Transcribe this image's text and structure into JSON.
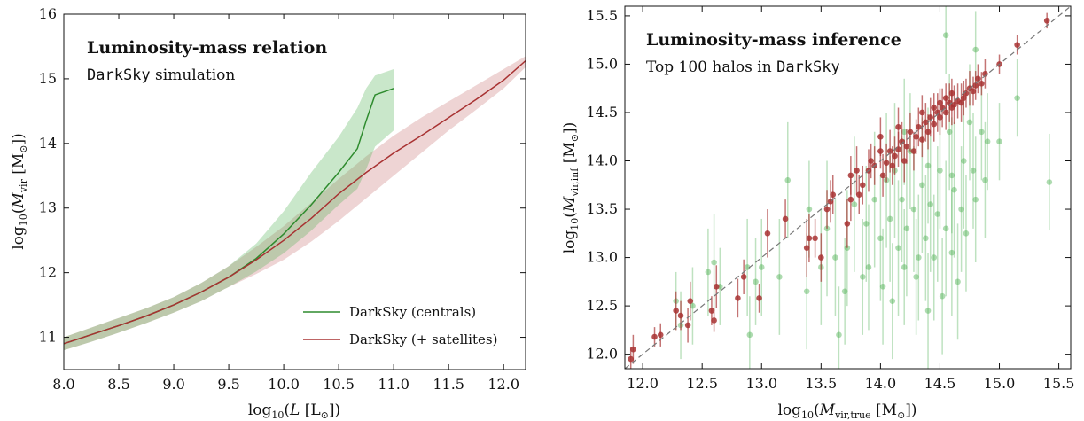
{
  "chart_data": [
    {
      "type": "line",
      "title": "Luminosity-mass relation",
      "subtitle_mono": "DarkSky",
      "subtitle_rest": " simulation",
      "xlabel": "log10(L [L⊙])",
      "ylabel": "log10(Mvir [M⊙])",
      "xlim": [
        8.0,
        12.2
      ],
      "ylim": [
        10.5,
        16.0
      ],
      "xticks": [
        "8.0",
        "8.5",
        "9.0",
        "9.5",
        "10.0",
        "10.5",
        "11.0",
        "11.5",
        "12.0"
      ],
      "yticks": [
        "11",
        "12",
        "13",
        "14",
        "15",
        "16"
      ],
      "legend_position": "bottom-right",
      "series": [
        {
          "name": "DarkSky (centrals)",
          "color": "#2e8b2e",
          "band_color": "#4caf50",
          "x": [
            8.0,
            8.25,
            8.5,
            8.75,
            9.0,
            9.25,
            9.5,
            9.75,
            10.0,
            10.25,
            10.5,
            10.67,
            10.75,
            10.83,
            11.0
          ],
          "y": [
            10.9,
            11.04,
            11.18,
            11.33,
            11.5,
            11.7,
            11.93,
            12.22,
            12.6,
            13.05,
            13.55,
            13.92,
            14.35,
            14.75,
            14.85
          ],
          "lower": [
            10.8,
            10.93,
            11.07,
            11.22,
            11.38,
            11.56,
            11.78,
            12.02,
            12.3,
            12.65,
            13.05,
            13.3,
            13.6,
            13.95,
            14.2
          ],
          "upper": [
            11.0,
            11.15,
            11.3,
            11.45,
            11.62,
            11.84,
            12.1,
            12.45,
            12.95,
            13.55,
            14.1,
            14.55,
            14.85,
            15.05,
            15.15
          ]
        },
        {
          "name": "DarkSky (+ satellites)",
          "color": "#a83232",
          "band_color": "#c87070",
          "x": [
            8.0,
            8.25,
            8.5,
            8.75,
            9.0,
            9.25,
            9.5,
            9.75,
            10.0,
            10.25,
            10.5,
            10.75,
            11.0,
            11.25,
            11.5,
            11.75,
            12.0,
            12.2
          ],
          "y": [
            10.9,
            11.04,
            11.18,
            11.33,
            11.5,
            11.7,
            11.93,
            12.2,
            12.5,
            12.84,
            13.22,
            13.55,
            13.85,
            14.12,
            14.4,
            14.68,
            14.98,
            15.28
          ],
          "lower": [
            10.8,
            10.93,
            11.07,
            11.22,
            11.38,
            11.56,
            11.78,
            11.98,
            12.2,
            12.48,
            12.8,
            13.15,
            13.5,
            13.85,
            14.2,
            14.52,
            14.85,
            15.18
          ],
          "upper": [
            11.0,
            11.15,
            11.3,
            11.45,
            11.62,
            11.84,
            12.1,
            12.4,
            12.72,
            13.08,
            13.45,
            13.8,
            14.12,
            14.4,
            14.65,
            14.9,
            15.15,
            15.35
          ]
        }
      ]
    },
    {
      "type": "scatter",
      "title": "Luminosity-mass inference",
      "subtitle_rest": "Top 100 halos in ",
      "subtitle_mono": "DarkSky",
      "xlabel": "log10(Mvir,true [M⊙])",
      "ylabel": "log10(Mvir,inf [M⊙])",
      "xlim": [
        11.85,
        15.6
      ],
      "ylim": [
        11.85,
        15.6
      ],
      "xticks": [
        "12.0",
        "12.5",
        "13.0",
        "13.5",
        "14.0",
        "14.5",
        "15.0",
        "15.5"
      ],
      "yticks": [
        "12.0",
        "12.5",
        "13.0",
        "13.5",
        "14.0",
        "14.5",
        "15.0",
        "15.5"
      ],
      "diagonal": true,
      "series": [
        {
          "name": "",
          "color": "#a83232",
          "points": [
            [
              11.9,
              11.95,
              0.12
            ],
            [
              11.92,
              12.05,
              0.15
            ],
            [
              12.1,
              12.18,
              0.1
            ],
            [
              12.15,
              12.2,
              0.12
            ],
            [
              12.28,
              12.45,
              0.2
            ],
            [
              12.32,
              12.4,
              0.15
            ],
            [
              12.38,
              12.3,
              0.18
            ],
            [
              12.4,
              12.55,
              0.2
            ],
            [
              12.58,
              12.45,
              0.15
            ],
            [
              12.6,
              12.35,
              0.12
            ],
            [
              12.62,
              12.7,
              0.22
            ],
            [
              12.8,
              12.58,
              0.2
            ],
            [
              12.85,
              12.8,
              0.18
            ],
            [
              12.98,
              12.58,
              0.15
            ],
            [
              13.05,
              13.25,
              0.25
            ],
            [
              13.2,
              13.4,
              0.2
            ],
            [
              13.38,
              13.1,
              0.3
            ],
            [
              13.4,
              13.2,
              0.25
            ],
            [
              13.45,
              13.2,
              0.2
            ],
            [
              13.5,
              13.0,
              0.25
            ],
            [
              13.55,
              13.5,
              0.2
            ],
            [
              13.58,
              13.58,
              0.22
            ],
            [
              13.6,
              13.65,
              0.2
            ],
            [
              13.72,
              13.35,
              0.25
            ],
            [
              13.75,
              13.6,
              0.22
            ],
            [
              13.75,
              13.85,
              0.2
            ],
            [
              13.8,
              13.9,
              0.25
            ],
            [
              13.82,
              13.65,
              0.2
            ],
            [
              13.85,
              13.75,
              0.2
            ],
            [
              13.9,
              13.9,
              0.22
            ],
            [
              13.92,
              14.0,
              0.18
            ],
            [
              13.95,
              13.95,
              0.2
            ],
            [
              14.0,
              14.1,
              0.18
            ],
            [
              14.02,
              13.85,
              0.22
            ],
            [
              14.05,
              13.98,
              0.2
            ],
            [
              14.08,
              14.1,
              0.22
            ],
            [
              14.1,
              13.95,
              0.2
            ],
            [
              14.12,
              14.05,
              0.2
            ],
            [
              14.15,
              14.12,
              0.18
            ],
            [
              14.18,
              14.2,
              0.2
            ],
            [
              14.2,
              14.0,
              0.22
            ],
            [
              14.22,
              14.15,
              0.18
            ],
            [
              14.25,
              14.3,
              0.2
            ],
            [
              14.28,
              14.1,
              0.2
            ],
            [
              14.3,
              14.25,
              0.18
            ],
            [
              14.32,
              14.35,
              0.2
            ],
            [
              14.35,
              14.22,
              0.18
            ],
            [
              14.38,
              14.4,
              0.2
            ],
            [
              14.4,
              14.3,
              0.18
            ],
            [
              14.42,
              14.45,
              0.2
            ],
            [
              14.45,
              14.38,
              0.18
            ],
            [
              14.48,
              14.5,
              0.2
            ],
            [
              14.5,
              14.45,
              0.18
            ],
            [
              14.52,
              14.55,
              0.2
            ],
            [
              14.55,
              14.5,
              0.18
            ],
            [
              14.58,
              14.6,
              0.2
            ],
            [
              14.6,
              14.55,
              0.18
            ],
            [
              14.62,
              14.58,
              0.2
            ],
            [
              14.65,
              14.62,
              0.18
            ],
            [
              14.68,
              14.6,
              0.2
            ],
            [
              14.7,
              14.65,
              0.18
            ],
            [
              14.72,
              14.7,
              0.15
            ],
            [
              14.75,
              14.75,
              0.18
            ],
            [
              14.78,
              14.72,
              0.15
            ],
            [
              14.8,
              14.78,
              0.15
            ],
            [
              14.82,
              14.85,
              0.15
            ],
            [
              14.85,
              14.8,
              0.12
            ],
            [
              14.88,
              14.9,
              0.15
            ],
            [
              14.5,
              14.6,
              0.15
            ],
            [
              14.35,
              14.5,
              0.18
            ],
            [
              14.15,
              14.35,
              0.2
            ],
            [
              14.0,
              14.25,
              0.2
            ],
            [
              14.6,
              14.7,
              0.15
            ],
            [
              14.55,
              14.65,
              0.15
            ],
            [
              14.45,
              14.55,
              0.15
            ],
            [
              15.0,
              15.0,
              0.1
            ],
            [
              15.15,
              15.2,
              0.1
            ],
            [
              15.4,
              15.45,
              0.08
            ]
          ]
        },
        {
          "name": "",
          "color": "#4caf50",
          "points": [
            [
              12.28,
              12.55,
              0.3
            ],
            [
              12.32,
              12.3,
              0.35
            ],
            [
              12.42,
              12.5,
              0.4
            ],
            [
              12.55,
              12.85,
              0.45
            ],
            [
              12.65,
              12.7,
              0.4
            ],
            [
              12.88,
              12.9,
              0.5
            ],
            [
              12.95,
              12.75,
              0.45
            ],
            [
              13.0,
              12.9,
              0.5
            ],
            [
              13.15,
              12.8,
              0.6
            ],
            [
              13.22,
              13.8,
              0.6
            ],
            [
              13.38,
              12.65,
              0.6
            ],
            [
              13.4,
              13.5,
              0.5
            ],
            [
              13.5,
              12.9,
              0.6
            ],
            [
              13.55,
              13.3,
              0.7
            ],
            [
              13.62,
              13.0,
              0.6
            ],
            [
              13.7,
              12.65,
              0.55
            ],
            [
              13.72,
              13.1,
              0.6
            ],
            [
              13.78,
              13.55,
              0.7
            ],
            [
              13.85,
              12.8,
              0.6
            ],
            [
              13.88,
              13.35,
              0.6
            ],
            [
              13.9,
              12.9,
              0.65
            ],
            [
              13.95,
              13.6,
              0.7
            ],
            [
              14.0,
              13.2,
              0.65
            ],
            [
              14.02,
              12.7,
              0.6
            ],
            [
              14.05,
              13.8,
              0.7
            ],
            [
              14.08,
              13.4,
              0.65
            ],
            [
              14.1,
              12.55,
              0.6
            ],
            [
              14.12,
              13.9,
              0.7
            ],
            [
              14.15,
              13.1,
              0.7
            ],
            [
              14.18,
              13.6,
              0.65
            ],
            [
              14.2,
              12.9,
              0.6
            ],
            [
              14.22,
              13.3,
              0.7
            ],
            [
              14.25,
              14.1,
              0.6
            ],
            [
              14.28,
              13.5,
              0.65
            ],
            [
              14.3,
              12.8,
              0.6
            ],
            [
              14.32,
              13.0,
              0.65
            ],
            [
              14.35,
              13.75,
              0.7
            ],
            [
              14.38,
              13.2,
              0.65
            ],
            [
              14.4,
              12.45,
              0.6
            ],
            [
              14.42,
              13.55,
              0.7
            ],
            [
              14.45,
              13.0,
              0.65
            ],
            [
              14.48,
              13.45,
              0.7
            ],
            [
              14.5,
              13.9,
              0.6
            ],
            [
              14.52,
              12.6,
              0.6
            ],
            [
              14.55,
              13.3,
              0.7
            ],
            [
              14.58,
              14.3,
              0.6
            ],
            [
              14.6,
              13.05,
              0.65
            ],
            [
              14.62,
              13.7,
              0.7
            ],
            [
              14.65,
              12.75,
              0.6
            ],
            [
              14.68,
              13.5,
              0.65
            ],
            [
              14.7,
              14.0,
              0.7
            ],
            [
              14.72,
              13.25,
              0.6
            ],
            [
              14.75,
              14.4,
              0.6
            ],
            [
              14.78,
              13.9,
              0.6
            ],
            [
              14.8,
              13.6,
              0.65
            ],
            [
              14.85,
              14.3,
              0.5
            ],
            [
              14.88,
              13.8,
              0.6
            ],
            [
              14.8,
              15.15,
              0.4
            ],
            [
              14.55,
              15.3,
              0.4
            ],
            [
              14.9,
              14.2,
              0.5
            ],
            [
              15.15,
              14.65,
              0.4
            ],
            [
              15.0,
              14.2,
              0.4
            ],
            [
              15.42,
              13.78,
              0.5
            ],
            [
              14.6,
              13.85,
              0.6
            ],
            [
              14.4,
              13.95,
              0.6
            ],
            [
              14.2,
              14.3,
              0.55
            ],
            [
              13.65,
              12.2,
              0.5
            ],
            [
              12.6,
              12.95,
              0.5
            ],
            [
              12.9,
              12.2,
              0.4
            ]
          ]
        }
      ]
    }
  ],
  "legend": {
    "centrals": "DarkSky (centrals)",
    "satellites": "DarkSky (+ satellites)"
  }
}
